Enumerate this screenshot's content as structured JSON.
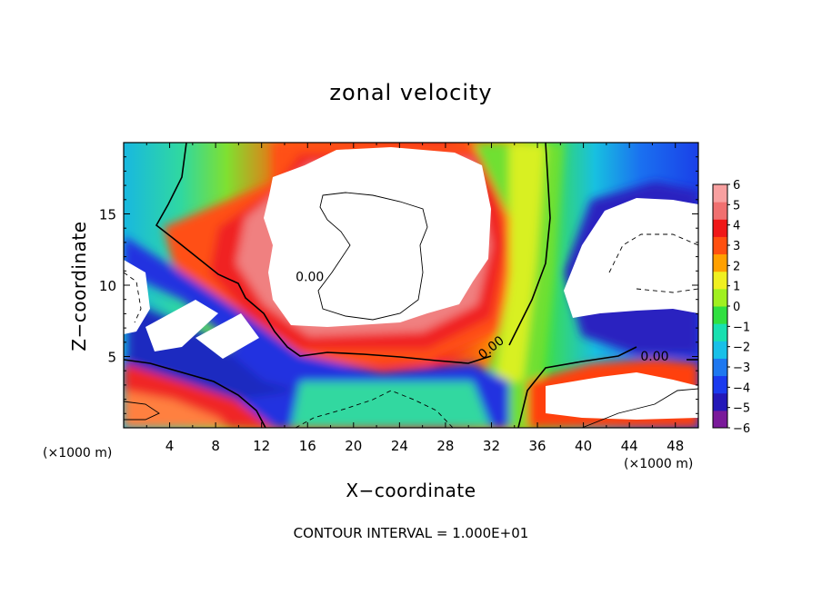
{
  "chart_data": {
    "type": "heatmap",
    "title": "zonal velocity",
    "xlabel": "X−coordinate",
    "ylabel": "Z−coordinate",
    "x_unit_label": "(×1000 m)",
    "footnote": "CONTOUR INTERVAL = 1.000E+01",
    "xlim": [
      0,
      50
    ],
    "ylim": [
      0,
      20
    ],
    "x_ticks": [
      4,
      8,
      12,
      16,
      20,
      24,
      28,
      32,
      36,
      40,
      44,
      48
    ],
    "y_ticks": [
      5,
      10,
      15
    ],
    "colorbar": {
      "min": -6,
      "max": 6,
      "tick_labels": [
        "6",
        "5",
        "4",
        "3",
        "2",
        "1",
        "0",
        "−1",
        "−2",
        "−3",
        "−4",
        "−5",
        "−6"
      ],
      "colors": [
        "#7a1a9a",
        "#2418b8",
        "#1a3aee",
        "#1e78f0",
        "#18c0e8",
        "#18e0b0",
        "#30e040",
        "#a0f020",
        "#f0f020",
        "#ffa000",
        "#ff5010",
        "#f01818",
        "#f07070",
        "#f8a0a0"
      ]
    },
    "contour_labels": [
      {
        "text": "0.00",
        "x": 16.2,
        "z": 10.3
      },
      {
        "text": "0.00",
        "x": 32.2,
        "z": 5.4
      },
      {
        "text": "0.00",
        "x": 46.2,
        "z": 4.7
      }
    ]
  }
}
